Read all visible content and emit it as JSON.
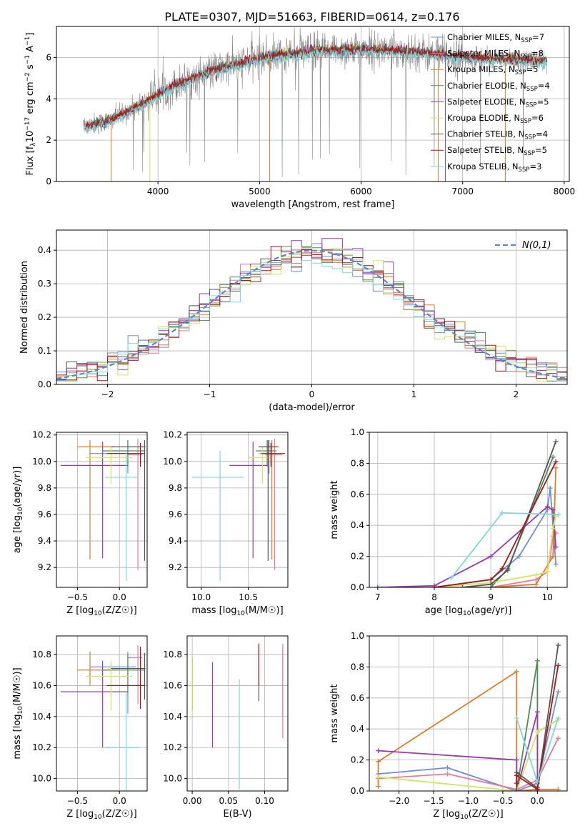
{
  "figure": {
    "title": "PLATE=0307, MJD=51663, FIBERID=0614, z=0.176"
  },
  "colors": [
    "#6a8fd8",
    "#e8799a",
    "#e07b2a",
    "#4f8a57",
    "#9a3aaa",
    "#cce860",
    "#555555",
    "#aa1515",
    "#7fd6e0"
  ],
  "models": [
    {
      "label": "Chabrier MILES, N",
      "sub": "SSP",
      "suffix": "=7",
      "color": "#6a8fd8"
    },
    {
      "label": "Salpeter MILES, N",
      "sub": "SSP",
      "suffix": "=8",
      "color": "#e8799a"
    },
    {
      "label": "Kroupa MILES, N",
      "sub": "SSP",
      "suffix": "=5",
      "color": "#e07b2a"
    },
    {
      "label": "Chabrier ELODIE, N",
      "sub": "SSP",
      "suffix": "=4",
      "color": "#4f8a57"
    },
    {
      "label": "Salpeter ELODIE, N",
      "sub": "SSP",
      "suffix": "=5",
      "color": "#9a3aaa"
    },
    {
      "label": "Kroupa ELODIE, N",
      "sub": "SSP",
      "suffix": "=6",
      "color": "#cce860"
    },
    {
      "label": "Chabrier STELIB, N",
      "sub": "SSP",
      "suffix": "=4",
      "color": "#555555"
    },
    {
      "label": "Salpeter STELIB, N",
      "sub": "SSP",
      "suffix": "=5",
      "color": "#aa1515"
    },
    {
      "label": "Kroupa STELIB, N",
      "sub": "SSP",
      "suffix": "=3",
      "color": "#7fd6e0"
    }
  ],
  "chart_data": [
    {
      "id": "spectrum",
      "type": "line",
      "xlabel": "wavelength [Angstrom, rest frame]",
      "ylabel": "Flux [f",
      "xlim": [
        3000,
        8050
      ],
      "ylim": [
        0,
        7.5
      ],
      "xticks": [
        4000,
        5000,
        6000,
        7000,
        8000
      ],
      "yticks": [
        0,
        2,
        4,
        6
      ],
      "x_range": [
        3270,
        7830
      ],
      "continuum": [
        [
          3270,
          2.7
        ],
        [
          3500,
          2.9
        ],
        [
          3700,
          3.4
        ],
        [
          3900,
          3.9
        ],
        [
          4100,
          4.5
        ],
        [
          4300,
          4.9
        ],
        [
          4500,
          5.3
        ],
        [
          4800,
          5.7
        ],
        [
          5000,
          6.0
        ],
        [
          5500,
          6.3
        ],
        [
          6000,
          6.4
        ],
        [
          6500,
          6.3
        ],
        [
          7000,
          6.0
        ],
        [
          7500,
          5.9
        ],
        [
          7830,
          5.8
        ]
      ],
      "legend_loc": "right"
    },
    {
      "id": "residuals",
      "type": "histogram",
      "xlabel": "(data-model)/error",
      "ylabel": "Normed distribution",
      "xlim": [
        -2.5,
        2.5
      ],
      "ylim": [
        0,
        0.46
      ],
      "xticks": [
        -2,
        -1,
        0,
        1,
        2
      ],
      "yticks": [
        0.0,
        0.1,
        0.2,
        0.3,
        0.4
      ],
      "bin_width": 0.1,
      "reference": {
        "label": "N(0,1)",
        "mean": 0,
        "sigma": 1
      },
      "legend_loc": "upper right"
    },
    {
      "id": "age_vs_Z",
      "type": "scatter",
      "xlabel": "Z [log",
      "ylabel": "age  [log",
      "xlim": [
        -0.75,
        0.33
      ],
      "ylim": [
        9.05,
        10.22
      ],
      "xticks": [
        -0.5,
        0.0
      ],
      "yticks": [
        9.2,
        9.4,
        9.6,
        9.8,
        10.0,
        10.2
      ],
      "points": [
        {
          "x": 0.1,
          "xerr": [
            0.45,
            0.1
          ],
          "y": 10.06,
          "yerr": [
            0.15,
            0.1
          ]
        },
        {
          "x": 0.22,
          "xerr": [
            0.12,
            0.05
          ],
          "y": 10.05,
          "yerr": [
            0.87,
            0.12
          ]
        },
        {
          "x": -0.35,
          "xerr": [
            0.15,
            0.3
          ],
          "y": 10.11,
          "yerr": [
            0.85,
            0.05
          ]
        },
        {
          "x": 0.1,
          "xerr": [
            0.3,
            0.2
          ],
          "y": 10.08,
          "yerr": [
            0.12,
            0.08
          ]
        },
        {
          "x": -0.2,
          "xerr": [
            0.5,
            0.3
          ],
          "y": 9.97,
          "yerr": [
            0.7,
            0.18
          ]
        },
        {
          "x": -0.1,
          "xerr": [
            0.3,
            0.25
          ],
          "y": 10.03,
          "yerr": [
            0.2,
            0.08
          ]
        },
        {
          "x": 0.3,
          "xerr": [
            0.4,
            0.01
          ],
          "y": 10.11,
          "yerr": [
            0.86,
            0.05
          ]
        },
        {
          "x": 0.25,
          "xerr": [
            0.4,
            0.05
          ],
          "y": 10.06,
          "yerr": [
            0.1,
            0.08
          ]
        },
        {
          "x": 0.08,
          "xerr": [
            0.25,
            0.15
          ],
          "y": 9.88,
          "yerr": [
            0.78,
            0.2
          ]
        }
      ]
    },
    {
      "id": "age_vs_mass",
      "type": "scatter",
      "xlabel": "mass [log",
      "ylabel": "",
      "xlim": [
        9.85,
        10.92
      ],
      "ylim": [
        9.05,
        10.22
      ],
      "xticks": [
        10.0,
        10.5
      ],
      "yticks": [
        9.2,
        9.4,
        9.6,
        9.8,
        10.0,
        10.2
      ],
      "points": [
        {
          "x": 10.72,
          "xerr": [
            0.1,
            0.08
          ],
          "y": 10.06,
          "yerr": [
            0.15,
            0.1
          ]
        },
        {
          "x": 10.78,
          "xerr": [
            0.1,
            0.08
          ],
          "y": 10.05,
          "yerr": [
            0.87,
            0.12
          ]
        },
        {
          "x": 10.75,
          "xerr": [
            0.1,
            0.08
          ],
          "y": 10.11,
          "yerr": [
            0.85,
            0.05
          ]
        },
        {
          "x": 10.7,
          "xerr": [
            0.12,
            0.1
          ],
          "y": 10.08,
          "yerr": [
            0.12,
            0.08
          ]
        },
        {
          "x": 10.55,
          "xerr": [
            0.25,
            0.15
          ],
          "y": 9.97,
          "yerr": [
            0.7,
            0.18
          ]
        },
        {
          "x": 10.65,
          "xerr": [
            0.15,
            0.1
          ],
          "y": 10.03,
          "yerr": [
            0.2,
            0.08
          ]
        },
        {
          "x": 10.71,
          "xerr": [
            0.1,
            0.1
          ],
          "y": 10.11,
          "yerr": [
            0.86,
            0.05
          ]
        },
        {
          "x": 10.74,
          "xerr": [
            0.1,
            0.15
          ],
          "y": 10.06,
          "yerr": [
            0.1,
            0.08
          ]
        },
        {
          "x": 10.2,
          "xerr": [
            0.3,
            0.25
          ],
          "y": 9.88,
          "yerr": [
            0.78,
            0.2
          ]
        }
      ]
    },
    {
      "id": "weight_vs_age",
      "type": "line",
      "xlabel": "age  [log",
      "ylabel": "mass weight",
      "xlim": [
        6.85,
        10.35
      ],
      "ylim": [
        0,
        1.0
      ],
      "xticks": [
        7,
        8,
        9,
        10
      ],
      "yticks": [
        0.0,
        0.2,
        0.4,
        0.6,
        0.8,
        1.0
      ],
      "series": [
        {
          "x": [
            8.0,
            9.0,
            9.5,
            10.0,
            10.05,
            10.15
          ],
          "y": [
            0.0,
            0.05,
            0.2,
            0.5,
            0.64,
            0.15
          ]
        },
        {
          "x": [
            9.0,
            9.8,
            10.0,
            10.05,
            10.1,
            10.15
          ],
          "y": [
            0.0,
            0.05,
            0.1,
            0.2,
            0.33,
            0.35
          ]
        },
        {
          "x": [
            8.0,
            9.0,
            9.8,
            10.1,
            10.15
          ],
          "y": [
            0.0,
            0.0,
            0.02,
            0.2,
            0.77
          ]
        },
        {
          "x": [
            9.0,
            9.3,
            10.1
          ],
          "y": [
            0.0,
            0.12,
            0.84
          ]
        },
        {
          "x": [
            7.0,
            8.0,
            9.0,
            10.0,
            10.1,
            10.15
          ],
          "y": [
            0.0,
            0.01,
            0.2,
            0.52,
            0.5,
            0.26
          ]
        },
        {
          "x": [
            8.0,
            9.0,
            9.8,
            10.0,
            10.1,
            10.15
          ],
          "y": [
            0.0,
            0.03,
            0.08,
            0.1,
            0.38,
            0.46
          ]
        },
        {
          "x": [
            8.5,
            9.0,
            9.3,
            10.15
          ],
          "y": [
            0.0,
            0.02,
            0.11,
            0.94
          ]
        },
        {
          "x": [
            8.0,
            9.0,
            9.2,
            10.15
          ],
          "y": [
            0.0,
            0.05,
            0.12,
            0.81
          ]
        },
        {
          "x": [
            8.3,
            9.2,
            10.2
          ],
          "y": [
            0.06,
            0.48,
            0.47
          ]
        }
      ]
    },
    {
      "id": "mass_vs_Z",
      "type": "scatter",
      "xlabel": "Z [log",
      "ylabel": "mass [log",
      "xlim": [
        -0.75,
        0.33
      ],
      "ylim": [
        9.92,
        10.92
      ],
      "xticks": [
        -0.5,
        0.0
      ],
      "yticks": [
        10.0,
        10.2,
        10.4,
        10.6,
        10.8
      ],
      "points": [
        {
          "x": 0.1,
          "xerr": [
            0.45,
            0.1
          ],
          "y": 10.72,
          "yerr": [
            0.3,
            0.1
          ]
        },
        {
          "x": 0.22,
          "xerr": [
            0.12,
            0.05
          ],
          "y": 10.78,
          "yerr": [
            0.3,
            0.08
          ]
        },
        {
          "x": -0.35,
          "xerr": [
            0.15,
            0.3
          ],
          "y": 10.7,
          "yerr": [
            0.1,
            0.12
          ]
        },
        {
          "x": 0.1,
          "xerr": [
            0.3,
            0.2
          ],
          "y": 10.7,
          "yerr": [
            0.15,
            0.1
          ]
        },
        {
          "x": -0.2,
          "xerr": [
            0.5,
            0.3
          ],
          "y": 10.56,
          "yerr": [
            0.36,
            0.2
          ]
        },
        {
          "x": -0.1,
          "xerr": [
            0.3,
            0.25
          ],
          "y": 10.66,
          "yerr": [
            0.22,
            0.1
          ]
        },
        {
          "x": 0.3,
          "xerr": [
            0.4,
            0.01
          ],
          "y": 10.71,
          "yerr": [
            0.2,
            0.1
          ]
        },
        {
          "x": 0.25,
          "xerr": [
            0.4,
            0.05
          ],
          "y": 10.6,
          "yerr": [
            0.15,
            0.25
          ]
        },
        {
          "x": 0.08,
          "xerr": [
            0.25,
            0.15
          ],
          "y": 10.2,
          "yerr": [
            0.28,
            0.35
          ]
        }
      ]
    },
    {
      "id": "mass_vs_EBV",
      "type": "scatter",
      "xlabel": "E(B-V)",
      "ylabel": "",
      "xlim": [
        -0.007,
        0.132
      ],
      "ylim": [
        9.92,
        10.92
      ],
      "xticks": [
        0.0,
        0.05,
        0.1
      ],
      "yticks": [
        10.0,
        10.2,
        10.4,
        10.6,
        10.8
      ],
      "points": [
        {
          "x": 0.125,
          "xerr": [
            0,
            0
          ],
          "y": 10.7,
          "yerr": [
            0.3,
            0.15
          ]
        },
        {
          "x": 0.125,
          "xerr": [
            0,
            0
          ],
          "y": 10.7,
          "yerr": [
            0.44,
            0.17
          ]
        },
        {
          "x": 0.0,
          "xerr": [
            0,
            0
          ],
          "y": 10.6,
          "yerr": [
            0.15,
            0.18
          ]
        },
        {
          "x": 0.0,
          "xerr": [
            0,
            0
          ],
          "y": 10.6,
          "yerr": [
            0.16,
            0.18
          ]
        },
        {
          "x": 0.028,
          "xerr": [
            0,
            0
          ],
          "y": 10.55,
          "yerr": [
            0.35,
            0.2
          ]
        },
        {
          "x": 0.0,
          "xerr": [
            0,
            0
          ],
          "y": 10.62,
          "yerr": [
            0.2,
            0.16
          ]
        },
        {
          "x": 0.092,
          "xerr": [
            0,
            0
          ],
          "y": 10.7,
          "yerr": [
            0.2,
            0.17
          ]
        },
        {
          "x": 0.092,
          "xerr": [
            0,
            0
          ],
          "y": 10.7,
          "yerr": [
            0.1,
            0.17
          ]
        },
        {
          "x": 0.065,
          "xerr": [
            0,
            0
          ],
          "y": 10.3,
          "yerr": [
            0.37,
            0.34
          ]
        }
      ]
    },
    {
      "id": "weight_vs_Z",
      "type": "line",
      "xlabel": "Z [log",
      "ylabel": "mass weight",
      "xlim": [
        -2.43,
        0.43
      ],
      "ylim": [
        0,
        1.0
      ],
      "xticks": [
        -2.0,
        -1.5,
        -1.0,
        -0.5,
        0.0
      ],
      "yticks": [
        0.0,
        0.2,
        0.4,
        0.6,
        0.8,
        1.0
      ],
      "series": [
        {
          "x": [
            -2.3,
            -1.3,
            -0.3,
            0.0,
            0.3
          ],
          "y": [
            0.11,
            0.15,
            0.0,
            0.05,
            0.64
          ]
        },
        {
          "x": [
            -2.3,
            -1.3,
            -0.3,
            0.0,
            0.3
          ],
          "y": [
            0.08,
            0.11,
            0.01,
            0.07,
            0.34
          ]
        },
        {
          "x": [
            -2.3,
            -2.3,
            -0.3,
            -0.3,
            0.0,
            0.3
          ],
          "y": [
            0.03,
            0.19,
            0.77,
            0.0,
            0.01,
            0.01
          ]
        },
        {
          "x": [
            -0.3,
            0.0,
            0.0
          ],
          "y": [
            0.0,
            0.84,
            0.06
          ]
        },
        {
          "x": [
            -2.3,
            -0.3,
            -0.3,
            0.0,
            0.0
          ],
          "y": [
            0.26,
            0.2,
            0.0,
            0.51,
            0.0
          ]
        },
        {
          "x": [
            -2.3,
            -0.3,
            0.0,
            0.3
          ],
          "y": [
            0.09,
            0.0,
            0.38,
            0.46
          ]
        },
        {
          "x": [
            -0.3,
            -0.3,
            0.0,
            0.3
          ],
          "y": [
            0.0,
            0.12,
            0.02,
            0.94
          ]
        },
        {
          "x": [
            -0.3,
            -0.3,
            0.0,
            0.3
          ],
          "y": [
            0.05,
            0.1,
            0.01,
            0.81
          ]
        },
        {
          "x": [
            -0.3,
            0.0,
            0.3
          ],
          "y": [
            0.47,
            0.06,
            0.47
          ]
        }
      ]
    }
  ]
}
